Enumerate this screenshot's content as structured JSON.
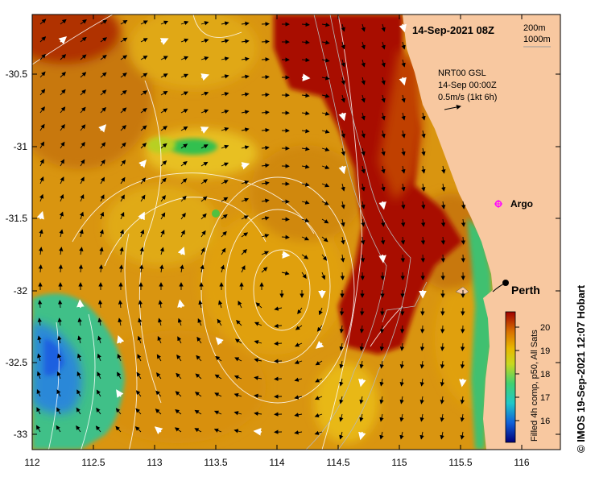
{
  "map": {
    "date_label": "14-Sep-2021 08Z",
    "depth_contours": [
      "200m",
      "1000m"
    ],
    "current_source": [
      "NRT00 GSL",
      "14-Sep 00:00Z",
      "0.5m/s (1kt 6h)"
    ],
    "places": [
      {
        "name": "Argo",
        "lon": 115.87,
        "lat": -31.42,
        "marker": "magenta-asterisk"
      },
      {
        "name": "Perth",
        "lon": 115.86,
        "lat": -31.95,
        "marker": "black-dot"
      }
    ],
    "lat_ticks": [
      "-30.5",
      "-31",
      "-31.5",
      "-32",
      "-32.5",
      "-33"
    ],
    "lon_ticks": [
      "112",
      "112.5",
      "113",
      "113.5",
      "114",
      "114.5",
      "115",
      "115.5",
      "116"
    ],
    "lat_range": [
      -33.1,
      -30.05
    ],
    "lon_range": [
      112.0,
      116.3
    ],
    "colorbar": {
      "ticks": [
        "16",
        "17",
        "18",
        "19",
        "20"
      ],
      "range": [
        15.3,
        20.8
      ],
      "label": "Filled 4h comp, p50, All Sats",
      "colors": [
        "#00007a",
        "#1060d8",
        "#20c8c8",
        "#40d070",
        "#c8d820",
        "#e8b800",
        "#d87000",
        "#a00000"
      ]
    },
    "credit": "© IMOS 19-Sep-2021 12:07 Hobart",
    "colors": {
      "land": "#f8c8a0",
      "warm_core": "#b01000",
      "field": "#d8900a",
      "cool": "#40c090",
      "cold": "#2070d0"
    }
  }
}
